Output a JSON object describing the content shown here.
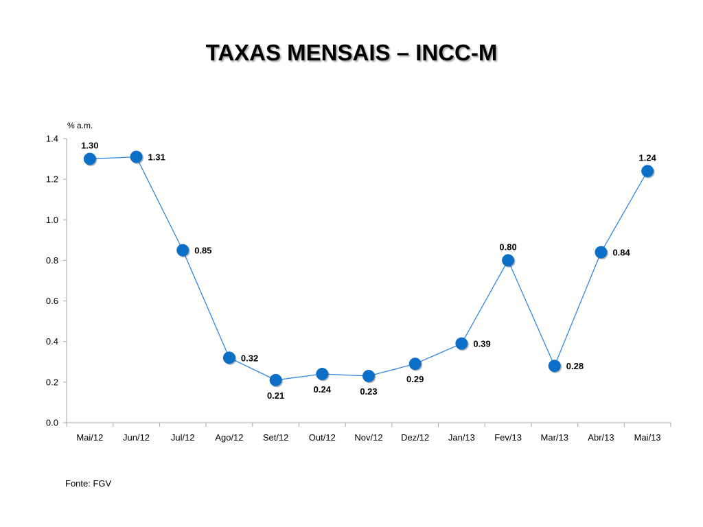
{
  "page": {
    "title": "TAXAS MENSAIS – INCC-M",
    "source": "Fonte: FGV"
  },
  "colors": {
    "line": "#2E86DE",
    "marker": "#0B6FC7",
    "axis": "#A6A6A6",
    "text": "#000000"
  },
  "chart_data": {
    "type": "line",
    "title": "TAXAS MENSAIS – INCC-M",
    "ylabel": "% a.m.",
    "xlabel": "",
    "categories": [
      "Mai/12",
      "Jun/12",
      "Jul/12",
      "Ago/12",
      "Set/12",
      "Out/12",
      "Nov/12",
      "Dez/12",
      "Jan/13",
      "Fev/13",
      "Mar/13",
      "Abr/13",
      "Mai/13"
    ],
    "values": [
      1.3,
      1.31,
      0.85,
      0.32,
      0.21,
      0.24,
      0.23,
      0.29,
      0.39,
      0.8,
      0.28,
      0.84,
      1.24
    ],
    "data_labels": [
      "1.30",
      "1.31",
      "0.85",
      "0.32",
      "0.21",
      "0.24",
      "0.23",
      "0.29",
      "0.39",
      "0.80",
      "0.28",
      "0.84",
      "1.24"
    ],
    "label_positions": [
      "above",
      "right",
      "right",
      "right",
      "below",
      "below",
      "below",
      "below",
      "right",
      "above",
      "right",
      "right",
      "above"
    ],
    "ylim": [
      0,
      1.4
    ],
    "yticks": [
      "0.0",
      "0.2",
      "0.4",
      "0.6",
      "0.8",
      "1.0",
      "1.2",
      "1.4"
    ],
    "grid": false,
    "legend": "none"
  }
}
